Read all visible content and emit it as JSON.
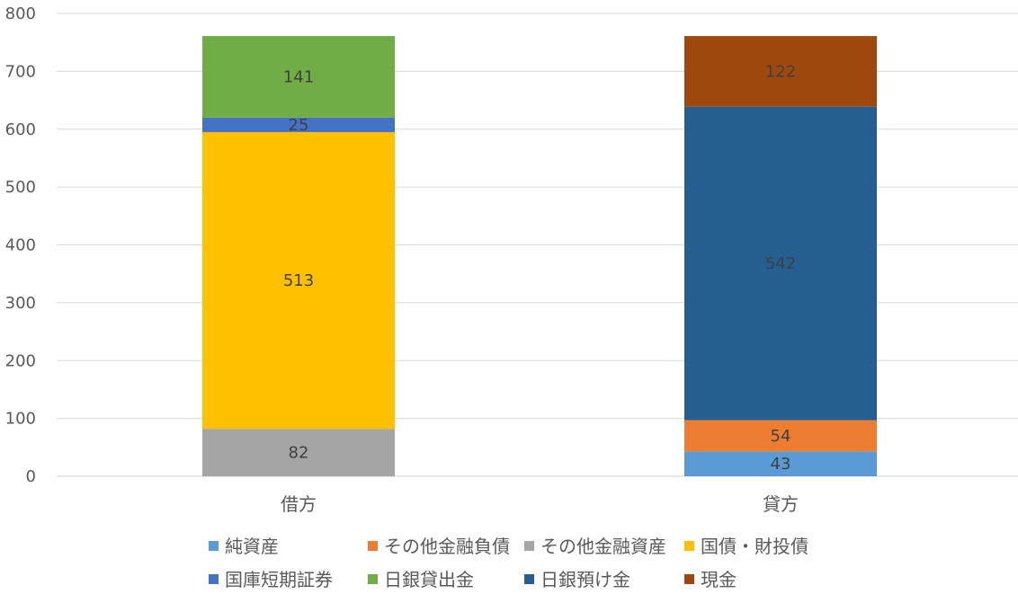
{
  "chart_data": {
    "type": "bar",
    "stacked": true,
    "title": "",
    "xlabel": "",
    "ylabel": "",
    "categories": [
      "借方",
      "貸方"
    ],
    "ylim": [
      0,
      800
    ],
    "yticks": [
      0,
      100,
      200,
      300,
      400,
      500,
      600,
      700,
      800
    ],
    "grid": true,
    "legend_position": "bottom",
    "series": [
      {
        "name": "純資産",
        "color": "#5B9BD5",
        "values": [
          null,
          43
        ]
      },
      {
        "name": "その他金融負債",
        "color": "#ED7D31",
        "values": [
          null,
          54
        ]
      },
      {
        "name": "その他金融資産",
        "color": "#A5A5A5",
        "values": [
          82,
          null
        ]
      },
      {
        "name": "国債・財投債",
        "color": "#FFC000",
        "values": [
          513,
          null
        ]
      },
      {
        "name": "国庫短期証券",
        "color": "#4472C4",
        "values": [
          25,
          null
        ]
      },
      {
        "name": "日銀貸出金",
        "color": "#70AD47",
        "values": [
          141,
          null
        ]
      },
      {
        "name": "日銀預け金",
        "color": "#255E91",
        "values": [
          null,
          542
        ]
      },
      {
        "name": "現金",
        "color": "#9E480E",
        "values": [
          null,
          122
        ]
      }
    ]
  }
}
